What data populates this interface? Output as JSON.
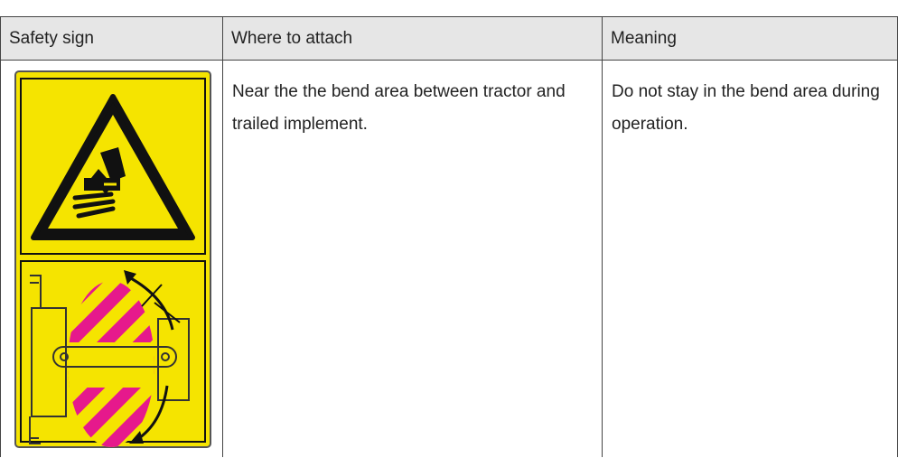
{
  "table": {
    "header": [
      "Safety sign",
      "Where to attach",
      "Meaning"
    ],
    "rows": [
      {
        "where": "Near the the bend area between tractor and trailed implement.",
        "meaning": "Do not stay in the bend area during operation."
      }
    ]
  }
}
